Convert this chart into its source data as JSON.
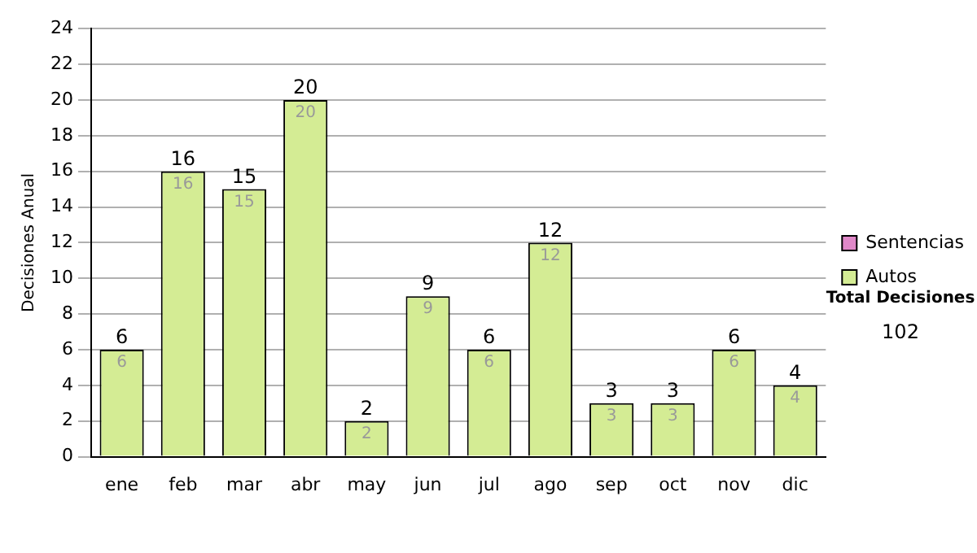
{
  "chart_data": {
    "type": "bar",
    "stacked": true,
    "ylabel": "Decisiones Anual",
    "categories": [
      "ene",
      "feb",
      "mar",
      "abr",
      "may",
      "jun",
      "jul",
      "ago",
      "sep",
      "oct",
      "nov",
      "dic"
    ],
    "series": [
      {
        "name": "Sentencias",
        "color": "#e088c8",
        "values": [
          0,
          0,
          0,
          0,
          0,
          0,
          0,
          0,
          0,
          0,
          0,
          0
        ]
      },
      {
        "name": "Autos",
        "color": "#d4ec94",
        "values": [
          6,
          16,
          15,
          20,
          2,
          9,
          6,
          12,
          3,
          3,
          6,
          4
        ],
        "value_labels": [
          "6",
          "16",
          "15",
          "20",
          "2",
          "9",
          "6",
          "12",
          "3",
          "3",
          "6",
          "4"
        ]
      }
    ],
    "totals": [
      "6",
      "16",
      "15",
      "20",
      "2",
      "9",
      "6",
      "12",
      "3",
      "3",
      "6",
      "4"
    ],
    "ylim": [
      0,
      24
    ],
    "yticks": [
      0,
      2,
      4,
      6,
      8,
      10,
      12,
      14,
      16,
      18,
      20,
      22,
      24
    ],
    "grid": "y",
    "legend": "right",
    "annotations": [
      "Total Decisiones",
      "102"
    ]
  }
}
